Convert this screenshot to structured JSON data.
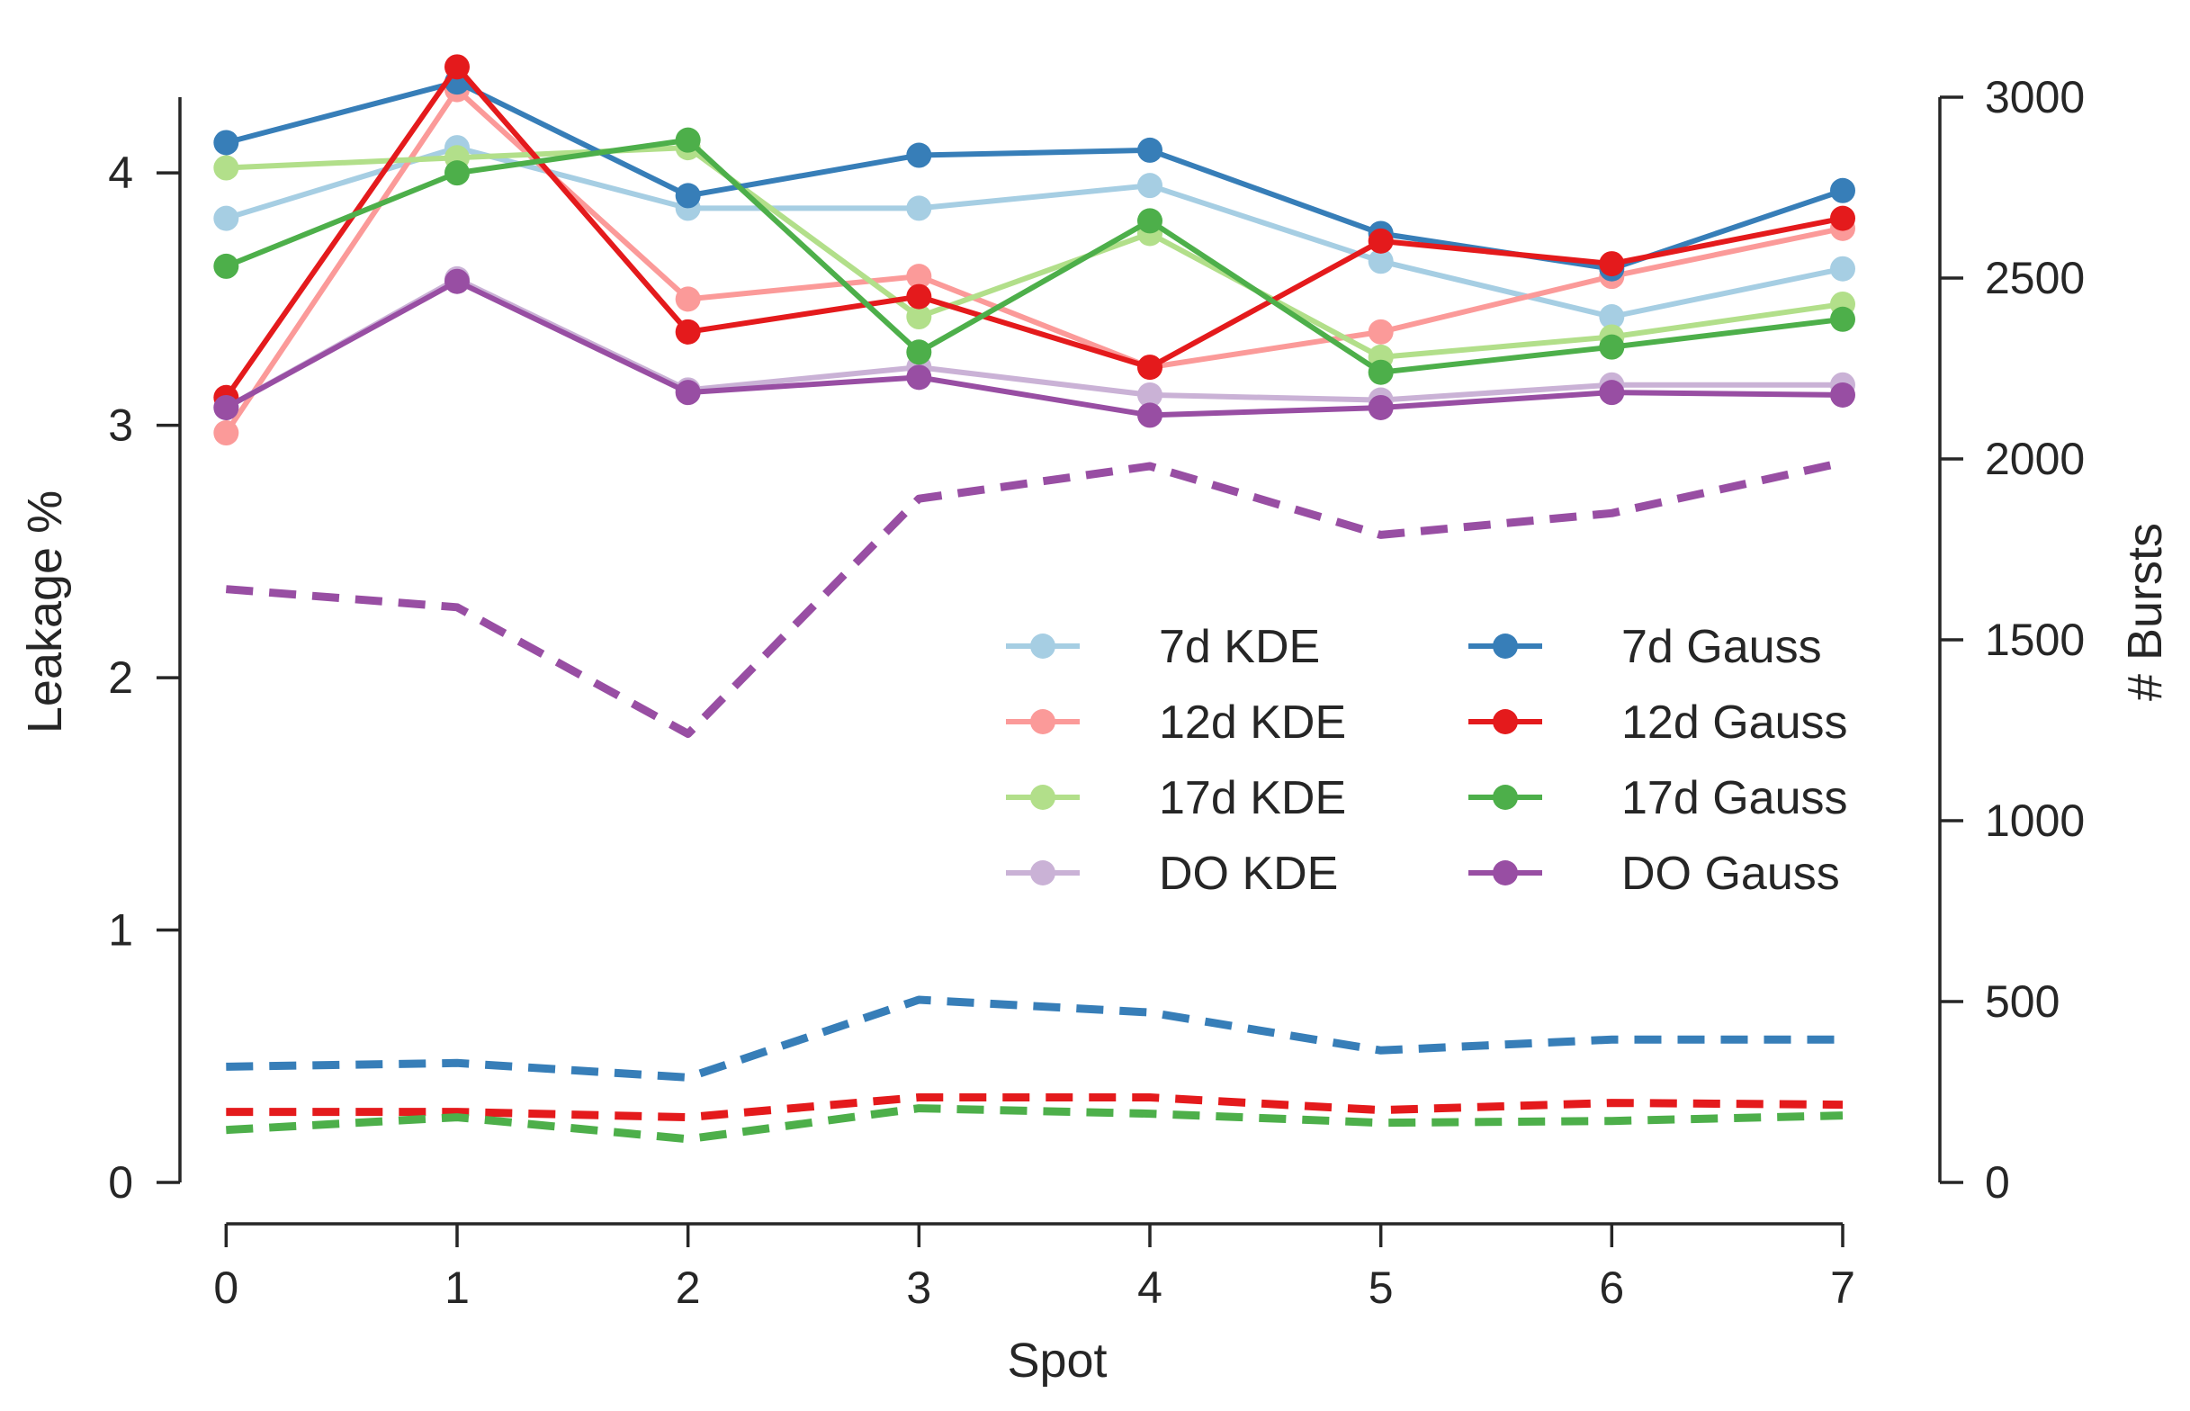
{
  "chart_data": {
    "type": "line",
    "title": "",
    "xlabel": "Spot",
    "ylabel_left": "Leakage %",
    "ylabel_right": "# Bursts",
    "x": [
      0,
      1,
      2,
      3,
      4,
      5,
      6,
      7
    ],
    "xlim": [
      -0.2,
      7
    ],
    "ylim_left": [
      0,
      4.3
    ],
    "ylim_right": [
      0,
      3000
    ],
    "xticks": [
      "0",
      "1",
      "2",
      "3",
      "4",
      "5",
      "6",
      "7"
    ],
    "yticks_left": [
      "0",
      "1",
      "2",
      "3",
      "4"
    ],
    "yticks_right": [
      "0",
      "500",
      "1000",
      "1500",
      "2000",
      "2500",
      "3000"
    ],
    "grid": false,
    "legend_position": "center-right",
    "series": [
      {
        "name": "7d KDE",
        "axis": "left",
        "style": "solid-marker",
        "color": "#a6cee3",
        "values": [
          3.82,
          4.1,
          3.86,
          3.86,
          3.95,
          3.65,
          3.43,
          3.62
        ]
      },
      {
        "name": "12d KDE",
        "axis": "left",
        "style": "solid-marker",
        "color": "#fb9a99",
        "values": [
          2.97,
          4.33,
          3.5,
          3.59,
          3.23,
          3.37,
          3.59,
          3.78
        ]
      },
      {
        "name": "17d KDE",
        "axis": "left",
        "style": "solid-marker",
        "color": "#b2df8a",
        "values": [
          4.02,
          4.06,
          4.1,
          3.43,
          3.76,
          3.27,
          3.35,
          3.48
        ]
      },
      {
        "name": "DO KDE",
        "axis": "left",
        "style": "solid-marker",
        "color": "#cab2d6",
        "values": [
          3.07,
          3.58,
          3.14,
          3.23,
          3.12,
          3.1,
          3.16,
          3.16
        ]
      },
      {
        "name": "7d Gauss",
        "axis": "left",
        "style": "solid-marker",
        "color": "#377eb8",
        "values": [
          4.12,
          4.36,
          3.91,
          4.07,
          4.09,
          3.76,
          3.62,
          3.93
        ]
      },
      {
        "name": "12d Gauss",
        "axis": "left",
        "style": "solid-marker",
        "color": "#e41a1c",
        "values": [
          3.11,
          4.42,
          3.37,
          3.51,
          3.23,
          3.73,
          3.64,
          3.82
        ]
      },
      {
        "name": "17d Gauss",
        "axis": "left",
        "style": "solid-marker",
        "color": "#4daf4a",
        "values": [
          3.63,
          4.0,
          4.13,
          3.29,
          3.81,
          3.21,
          3.31,
          3.42
        ]
      },
      {
        "name": "DO Gauss",
        "axis": "left",
        "style": "solid-marker",
        "color": "#984ea3",
        "values": [
          3.07,
          3.57,
          3.13,
          3.19,
          3.04,
          3.07,
          3.13,
          3.12
        ]
      },
      {
        "axis": "right",
        "style": "dashed",
        "color": "#377eb8",
        "values": [
          320,
          330,
          290,
          505,
          470,
          365,
          395,
          395
        ]
      },
      {
        "axis": "right",
        "style": "dashed",
        "color": "#e41a1c",
        "values": [
          195,
          195,
          180,
          235,
          235,
          200,
          220,
          215
        ]
      },
      {
        "axis": "right",
        "style": "dashed",
        "color": "#4daf4a",
        "values": [
          145,
          180,
          120,
          205,
          190,
          165,
          170,
          185
        ]
      },
      {
        "axis": "right",
        "style": "dashed",
        "color": "#984ea3",
        "values": [
          1640,
          1590,
          1240,
          1890,
          1980,
          1790,
          1850,
          1990
        ]
      }
    ],
    "legend_columns": [
      [
        "7d KDE",
        "12d KDE",
        "17d KDE",
        "DO KDE"
      ],
      [
        "7d Gauss",
        "12d Gauss",
        "17d Gauss",
        "DO Gauss"
      ]
    ]
  }
}
